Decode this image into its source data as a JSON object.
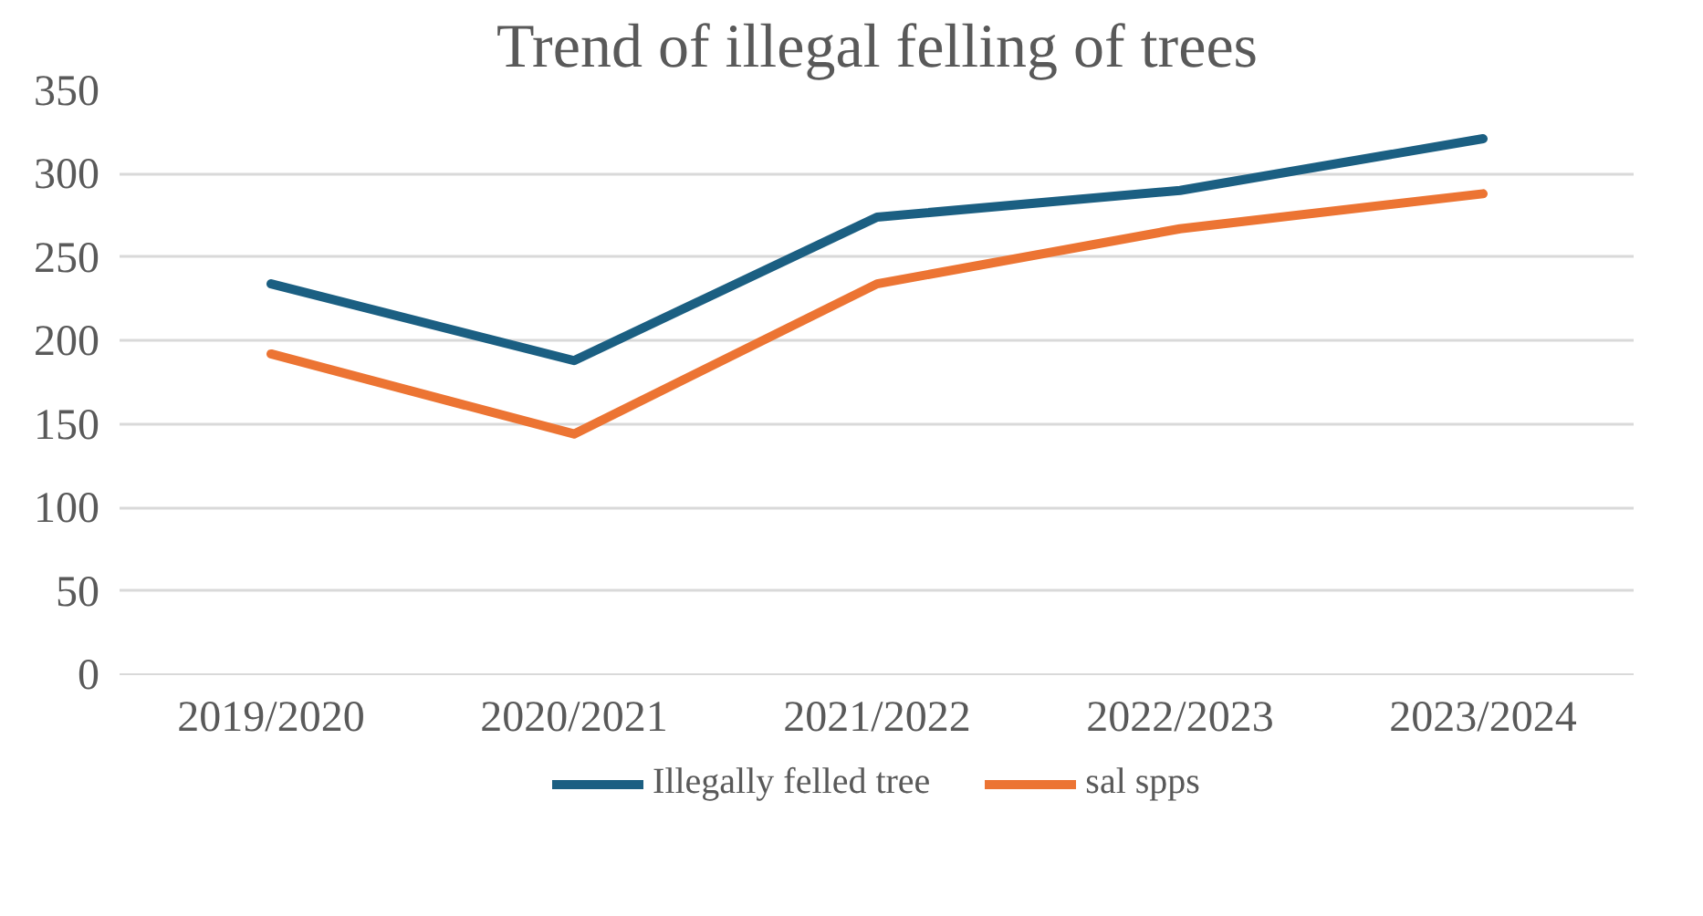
{
  "chart_data": {
    "type": "line",
    "title": "Trend of illegal felling of trees",
    "categories": [
      "2019/2020",
      "2020/2021",
      "2021/2022",
      "2022/2023",
      "2023/2024"
    ],
    "series": [
      {
        "name": "Illegally felled tree",
        "color": "#1b5f82",
        "values": [
          234,
          188,
          274,
          290,
          321
        ]
      },
      {
        "name": "sal spps",
        "color": "#ec7433",
        "values": [
          192,
          144,
          234,
          267,
          288
        ]
      }
    ],
    "ylim": [
      0,
      350
    ],
    "yticks": [
      0,
      50,
      100,
      150,
      200,
      250,
      300,
      350
    ],
    "grid": "y",
    "legend": "bottom",
    "marker": "none",
    "line_style": "solid"
  }
}
